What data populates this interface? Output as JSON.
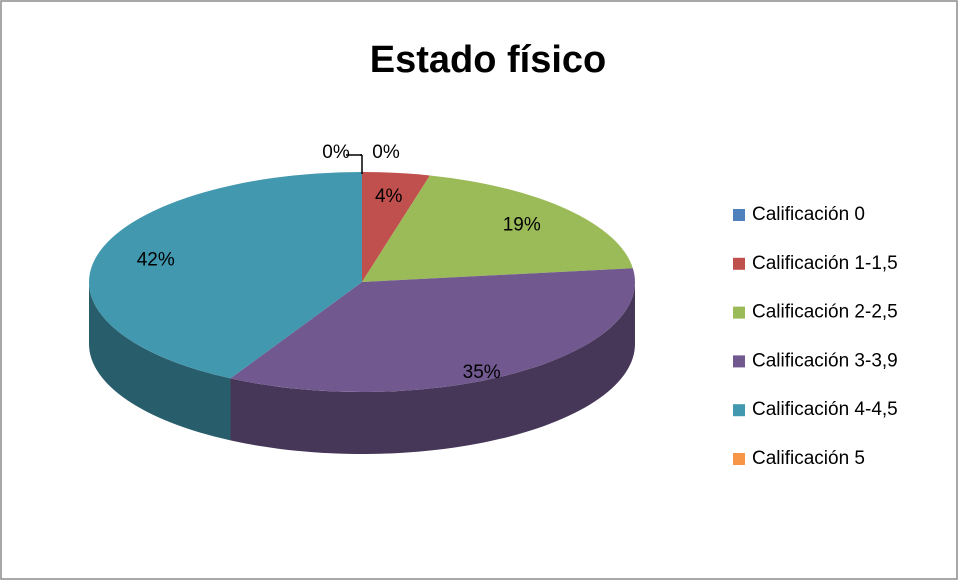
{
  "chart_data": {
    "type": "pie",
    "title": "Estado físico",
    "categories": [
      "Calificación 0",
      "Calificación 1-1,5",
      "Calificación 2-2,5",
      "Calificación 3-3,9",
      "Calificación 4-4,5",
      "Calificación 5"
    ],
    "values": [
      0,
      4,
      19,
      35,
      42,
      0
    ],
    "value_labels": [
      "0%",
      "4%",
      "19%",
      "35%",
      "42%",
      "0%"
    ],
    "colors": [
      "#4f81bd",
      "#c0504d",
      "#9bbb59",
      "#71588f",
      "#4198af",
      "#f79646"
    ],
    "legend": "right"
  }
}
